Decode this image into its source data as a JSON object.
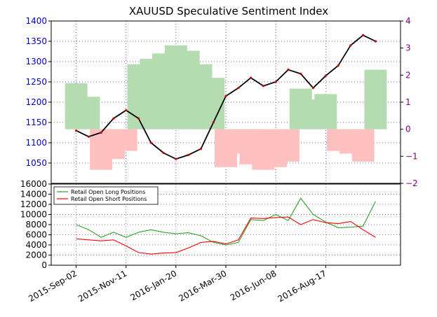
{
  "chart_data": [
    {
      "type": "line",
      "title": "XAUUSD Speculative Sentiment Index",
      "xlabel": "",
      "ylabel": "",
      "x_ticks": [
        "2015-Sep-02",
        "2015-Nov-11",
        "2016-Jan-20",
        "2016-Mar-30",
        "2016-Jun-08",
        "2016-Aug-17"
      ],
      "x_range": [
        0,
        14
      ],
      "ylim": [
        1000,
        1400
      ],
      "y_ticks": [
        "1050",
        "1100",
        "1150",
        "1200",
        "1250",
        "1300",
        "1350",
        "1400"
      ],
      "y2lim": [
        -2,
        4
      ],
      "y2_ticks": [
        "−2",
        "−1",
        "0",
        "1",
        "2",
        "3",
        "4"
      ],
      "grid": true,
      "series": [
        {
          "name": "",
          "kind": "candlestick-price",
          "color": "#000000",
          "x": [
            1.0,
            1.5,
            2.0,
            2.5,
            3.0,
            3.5,
            4.0,
            4.5,
            5.0,
            5.5,
            6.0,
            6.5,
            7.0,
            7.5,
            8.0,
            8.5,
            9.0,
            9.5,
            10.0,
            10.5,
            11.0,
            11.5,
            12.0,
            12.5,
            13.0
          ],
          "values": [
            1130,
            1115,
            1125,
            1160,
            1180,
            1160,
            1100,
            1075,
            1060,
            1070,
            1085,
            1150,
            1215,
            1235,
            1260,
            1240,
            1250,
            1280,
            1270,
            1235,
            1265,
            1290,
            1340,
            1365,
            1350
          ]
        },
        {
          "name": "",
          "kind": "sentiment-bars",
          "positive_color": "#b5dcb0",
          "negative_color": "#ffc0c0",
          "x": [
            1.0,
            1.5,
            2.0,
            2.5,
            3.0,
            3.5,
            4.0,
            4.5,
            5.0,
            5.5,
            6.0,
            6.5,
            7.0,
            7.5,
            8.0,
            8.5,
            9.0,
            9.5,
            10.0,
            10.5,
            11.0,
            11.5,
            12.0,
            12.5,
            13.0
          ],
          "values": [
            1.7,
            1.2,
            -1.5,
            -1.1,
            -0.8,
            2.4,
            2.6,
            2.8,
            3.1,
            2.9,
            2.4,
            1.9,
            -1.4,
            -0.9,
            -1.3,
            -1.5,
            -1.4,
            -1.2,
            1.5,
            1.1,
            1.3,
            -0.8,
            -0.9,
            -1.2,
            2.2
          ]
        }
      ]
    },
    {
      "type": "line",
      "xlabel": "",
      "ylabel": "",
      "x_ticks": [
        "2015-Sep-02",
        "2015-Nov-11",
        "2016-Jan-20",
        "2016-Mar-30",
        "2016-Jun-08",
        "2016-Aug-17"
      ],
      "x_range": [
        0,
        14
      ],
      "ylim": [
        0,
        16000
      ],
      "y_ticks": [
        "0",
        "2000",
        "4000",
        "6000",
        "8000",
        "10000",
        "12000",
        "14000",
        "16000"
      ],
      "grid": true,
      "legend": "top-left",
      "series": [
        {
          "name": "Retail Open Long Positions",
          "color": "#2ca02c",
          "x": [
            1.0,
            1.5,
            2.0,
            2.5,
            3.0,
            3.5,
            4.0,
            4.5,
            5.0,
            5.5,
            6.0,
            6.5,
            7.0,
            7.5,
            8.0,
            8.5,
            9.0,
            9.5,
            10.0,
            10.5,
            11.0,
            11.5,
            12.0,
            12.5,
            13.0
          ],
          "values": [
            8000,
            7000,
            5500,
            6500,
            5500,
            6500,
            7000,
            6500,
            6200,
            6400,
            5800,
            4500,
            4000,
            4500,
            9000,
            8800,
            10000,
            8800,
            13200,
            10000,
            8500,
            7400,
            7500,
            7700,
            12600
          ]
        },
        {
          "name": "Retail Open Short Positions",
          "color": "#ff0000",
          "x": [
            1.0,
            1.5,
            2.0,
            2.5,
            3.0,
            3.5,
            4.0,
            4.5,
            5.0,
            5.5,
            6.0,
            6.5,
            7.0,
            7.5,
            8.0,
            8.5,
            9.0,
            9.5,
            10.0,
            10.5,
            11.0,
            11.5,
            12.0,
            12.5,
            13.0
          ],
          "values": [
            5200,
            5000,
            4800,
            5000,
            3800,
            2500,
            2200,
            2400,
            2500,
            3400,
            4500,
            4700,
            4200,
            5000,
            9300,
            9200,
            9400,
            9500,
            8000,
            9000,
            8400,
            8200,
            8600,
            7000,
            5500
          ]
        }
      ]
    }
  ]
}
